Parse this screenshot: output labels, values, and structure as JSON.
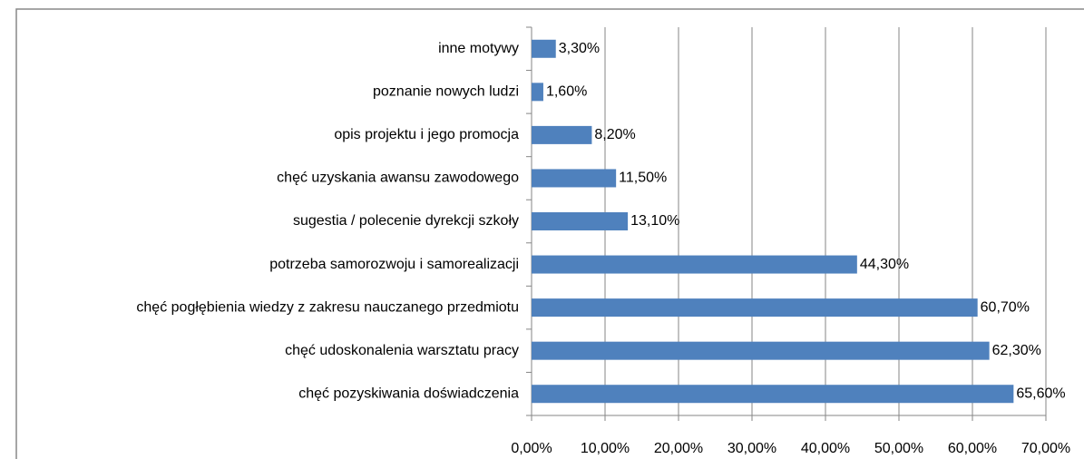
{
  "chart_data": {
    "type": "bar",
    "orientation": "horizontal",
    "categories": [
      "inne motywy",
      "poznanie nowych ludzi",
      "opis projektu i jego promocja",
      "chęć uzyskania awansu zawodowego",
      "sugestia / polecenie dyrekcji szkoły",
      "potrzeba samorozwoju i samorealizacji",
      "chęć pogłębienia wiedzy z zakresu nauczanego przedmiotu",
      "chęć udoskonalenia warsztatu pracy",
      "chęć pozyskiwania doświadczenia"
    ],
    "values": [
      3.3,
      1.6,
      8.2,
      11.5,
      13.1,
      44.3,
      60.7,
      62.3,
      65.6
    ],
    "value_labels": [
      "3,30%",
      "1,60%",
      "8,20%",
      "11,50%",
      "13,10%",
      "44,30%",
      "60,70%",
      "62,30%",
      "65,60%"
    ],
    "color": "#4f81bd",
    "xlim": [
      0,
      70
    ],
    "xticks": [
      {
        "value": 0,
        "label": "0,00%"
      },
      {
        "value": 10,
        "label": "10,00%"
      },
      {
        "value": 20,
        "label": "20,00%"
      },
      {
        "value": 30,
        "label": "30,00%"
      },
      {
        "value": 40,
        "label": "40,00%"
      },
      {
        "value": 50,
        "label": "50,00%"
      },
      {
        "value": 60,
        "label": "60,00%"
      },
      {
        "value": 70,
        "label": "70,00%"
      }
    ],
    "grid": true
  }
}
